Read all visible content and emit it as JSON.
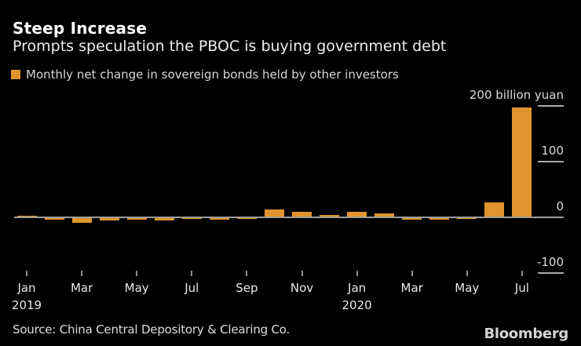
{
  "theme": {
    "background": "#000000",
    "accent_orange": "#e1942d",
    "axis_line": "#9e9e9e",
    "grid_line": "#ababab",
    "text_primary": "#ffffff",
    "text_secondary": "#d6d6d6"
  },
  "header": {
    "title": "Steep Increase",
    "subtitle": "Prompts speculation the PBOC is buying government debt"
  },
  "legend": {
    "label": "Monthly net change in sovereign bonds held by other investors",
    "color": "#e1942d"
  },
  "chart_data": {
    "type": "bar",
    "title": "Steep Increase",
    "subtitle": "Prompts speculation the PBOC is buying government debt",
    "series_name": "Monthly net change in sovereign bonds held by other investors",
    "unit": "billion yuan",
    "bar_color": "#e1942d",
    "grid": "right-segments-only",
    "legend_position": "top-left",
    "categories": [
      "Jan 2019",
      "Feb 2019",
      "Mar 2019",
      "Apr 2019",
      "May 2019",
      "Jun 2019",
      "Jul 2019",
      "Aug 2019",
      "Sep 2019",
      "Oct 2019",
      "Nov 2019",
      "Dec 2019",
      "Jan 2020",
      "Feb 2020",
      "Mar 2020",
      "Apr 2020",
      "May 2020",
      "Jun 2020",
      "Jul 2020"
    ],
    "values": [
      2,
      -3,
      -8,
      -4,
      -3,
      -4,
      -2,
      -3,
      -2,
      13,
      8,
      3,
      9,
      5,
      -3,
      -3,
      -2,
      25,
      196
    ],
    "ylim": [
      -100,
      200
    ],
    "yticks": [
      {
        "value": 200,
        "label": "200 billion yuan"
      },
      {
        "value": 100,
        "label": "100"
      },
      {
        "value": 0,
        "label": "0"
      },
      {
        "value": -100,
        "label": "-100"
      }
    ],
    "x_ticks": [
      {
        "index": 0,
        "label": "Jan",
        "year": "2019"
      },
      {
        "index": 2,
        "label": "Mar"
      },
      {
        "index": 4,
        "label": "May"
      },
      {
        "index": 6,
        "label": "Jul"
      },
      {
        "index": 8,
        "label": "Sep"
      },
      {
        "index": 10,
        "label": "Nov"
      },
      {
        "index": 12,
        "label": "Jan",
        "year": "2020"
      },
      {
        "index": 14,
        "label": "Mar"
      },
      {
        "index": 16,
        "label": "May"
      },
      {
        "index": 18,
        "label": "Jul"
      }
    ]
  },
  "footer": {
    "source": "Source: China Central Depository & Clearing Co.",
    "logo": "Bloomberg"
  }
}
